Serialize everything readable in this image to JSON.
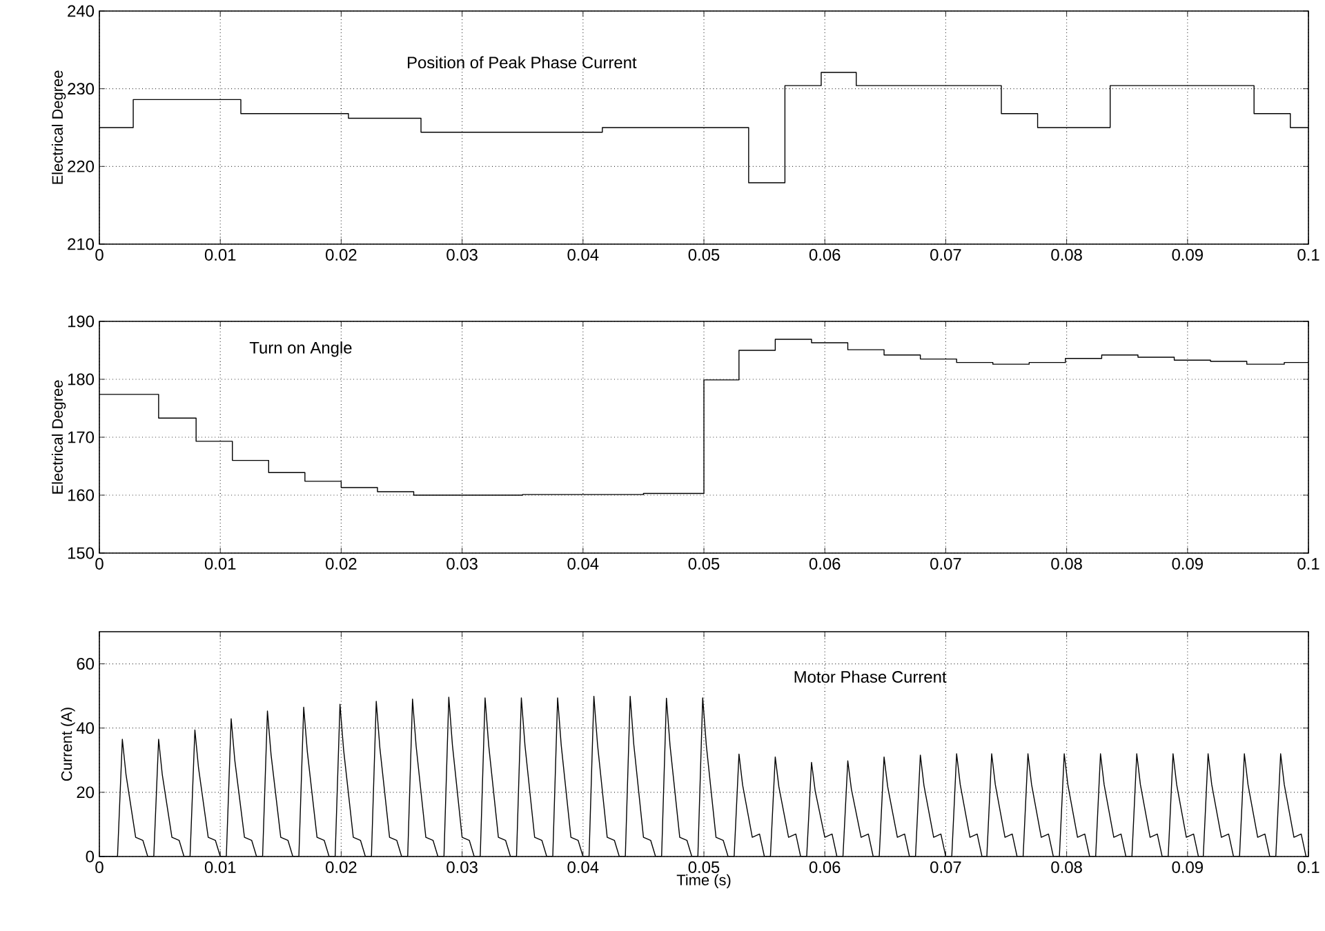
{
  "chart_data": [
    {
      "type": "step",
      "ylabel": "Electrical Degree",
      "annotations": [
        "Position of Peak Phase Current"
      ],
      "grid": true,
      "xlim": [
        0,
        0.1
      ],
      "ylim": [
        210,
        240
      ],
      "xticks": [
        0,
        0.01,
        0.02,
        0.03,
        0.04,
        0.05,
        0.06,
        0.07,
        0.08,
        0.09,
        0.1
      ],
      "yticks": [
        210,
        220,
        230,
        240
      ],
      "series": [
        {
          "color": "#000000",
          "x": [
            0,
            0.0028,
            0.0117,
            0.0206,
            0.0266,
            0.0416,
            0.0537,
            0.0567,
            0.0597,
            0.0626,
            0.0746,
            0.0776,
            0.0836,
            0.0955,
            0.0985,
            0.1
          ],
          "values": [
            225,
            228.6,
            226.8,
            226.2,
            224.4,
            225,
            217.9,
            230.4,
            232.1,
            230.4,
            226.8,
            225,
            230.4,
            226.8,
            225,
            225
          ]
        }
      ]
    },
    {
      "type": "step",
      "ylabel": "Electrical Degree",
      "annotations": [
        "Turn on Angle"
      ],
      "grid": true,
      "xlim": [
        0,
        0.1
      ],
      "ylim": [
        150,
        190
      ],
      "xticks": [
        0,
        0.01,
        0.02,
        0.03,
        0.04,
        0.05,
        0.06,
        0.07,
        0.08,
        0.09,
        0.1
      ],
      "yticks": [
        150,
        160,
        170,
        180,
        190
      ],
      "series": [
        {
          "color": "#000000",
          "x": [
            0,
            0.0049,
            0.008,
            0.011,
            0.014,
            0.017,
            0.02,
            0.023,
            0.026,
            0.035,
            0.045,
            0.05,
            0.0529,
            0.0559,
            0.0589,
            0.0619,
            0.0649,
            0.0679,
            0.0709,
            0.0739,
            0.0769,
            0.0799,
            0.0829,
            0.0859,
            0.0889,
            0.0919,
            0.0949,
            0.098,
            0.1
          ],
          "values": [
            177.4,
            173.3,
            169.3,
            166,
            163.9,
            162.4,
            161.3,
            160.6,
            160,
            160.1,
            160.3,
            179.9,
            185,
            186.9,
            186.3,
            185.1,
            184.2,
            183.5,
            182.9,
            182.6,
            182.9,
            183.6,
            184.2,
            183.8,
            183.3,
            183.1,
            182.6,
            182.9,
            182.9
          ]
        }
      ]
    },
    {
      "type": "line",
      "xlabel": "Time (s)",
      "ylabel": "Current (A)",
      "annotations": [
        "Motor Phase Current"
      ],
      "grid": true,
      "xlim": [
        0,
        0.1
      ],
      "ylim": [
        0,
        70
      ],
      "xticks": [
        0,
        0.01,
        0.02,
        0.03,
        0.04,
        0.05,
        0.06,
        0.07,
        0.08,
        0.09,
        0.1
      ],
      "yticks": [
        0,
        20,
        40,
        60
      ],
      "series": [
        {
          "color": "#000000",
          "x": [
            0,
            0.0015,
            0.0019,
            0.0022,
            0.003,
            0.0036,
            0.004,
            0.0045,
            0.0049,
            0.0052,
            0.006,
            0.0066,
            0.007,
            0.0075,
            0.0079,
            0.0082,
            0.009,
            0.0096,
            0.01,
            0.0105,
            0.0109,
            0.0112,
            0.012,
            0.0126,
            0.013,
            0.0135,
            0.0139,
            0.0142,
            0.015,
            0.0156,
            0.016,
            0.0165,
            0.0169,
            0.0172,
            0.018,
            0.0186,
            0.019,
            0.0195,
            0.0199,
            0.0202,
            0.021,
            0.0216,
            0.022,
            0.0225,
            0.0229,
            0.0232,
            0.024,
            0.0246,
            0.025,
            0.0255,
            0.0259,
            0.0262,
            0.027,
            0.0276,
            0.028,
            0.0285,
            0.0289,
            0.0292,
            0.03,
            0.0306,
            0.031,
            0.0315,
            0.0319,
            0.0322,
            0.033,
            0.0336,
            0.034,
            0.0345,
            0.0349,
            0.0352,
            0.036,
            0.0366,
            0.037,
            0.0375,
            0.0379,
            0.0382,
            0.039,
            0.0396,
            0.04,
            0.0405,
            0.0409,
            0.0412,
            0.042,
            0.0426,
            0.043,
            0.0435,
            0.0439,
            0.0442,
            0.045,
            0.0456,
            0.046,
            0.0465,
            0.0469,
            0.0472,
            0.048,
            0.0486,
            0.049,
            0.0495,
            0.0499,
            0.0502,
            0.051,
            0.0516,
            0.052,
            0.0525,
            0.0529,
            0.0532,
            0.054,
            0.0546,
            0.055,
            0.0555,
            0.0559,
            0.0562,
            0.057,
            0.0576,
            0.058,
            0.0585,
            0.0589,
            0.0592,
            0.06,
            0.0606,
            0.061,
            0.0615,
            0.0619,
            0.0622,
            0.063,
            0.0636,
            0.064,
            0.0645,
            0.0649,
            0.0652,
            0.066,
            0.0666,
            0.067,
            0.0675,
            0.0679,
            0.0682,
            0.069,
            0.0696,
            0.07,
            0.0705,
            0.0709,
            0.0712,
            0.072,
            0.0726,
            0.073,
            0.0734,
            0.0738,
            0.0741,
            0.0749,
            0.0755,
            0.0759,
            0.0764,
            0.0768,
            0.0771,
            0.0779,
            0.0785,
            0.0789,
            0.0794,
            0.0798,
            0.0801,
            0.0809,
            0.0815,
            0.0819,
            0.0824,
            0.0828,
            0.0831,
            0.0839,
            0.0845,
            0.0849,
            0.0854,
            0.0858,
            0.0861,
            0.0869,
            0.0875,
            0.0879,
            0.0884,
            0.0888,
            0.0891,
            0.0899,
            0.0905,
            0.0909,
            0.0913,
            0.0917,
            0.092,
            0.0928,
            0.0934,
            0.0938,
            0.0943,
            0.0947,
            0.095,
            0.0958,
            0.0964,
            0.0968,
            0.0973,
            0.0977,
            0.098,
            0.0988,
            0.0994,
            0.0998
          ],
          "values": [
            0,
            0,
            36.5,
            25.6,
            6,
            5,
            0,
            0,
            36.5,
            25.6,
            6,
            5,
            0,
            0,
            39.4,
            27.6,
            6,
            5,
            0,
            0,
            42.9,
            30,
            6,
            5,
            0,
            0,
            45.3,
            31.7,
            6,
            5,
            0,
            0,
            46.5,
            32.6,
            6,
            5,
            0,
            0,
            47.4,
            33.2,
            6,
            5,
            0,
            0,
            48.3,
            33.8,
            6,
            5,
            0,
            0,
            49,
            34.3,
            6,
            5,
            0,
            0,
            49.6,
            34.7,
            6,
            5,
            0,
            0,
            49.4,
            34.6,
            6,
            5,
            0,
            0,
            49.4,
            34.6,
            6,
            5,
            0,
            0,
            49.4,
            34.6,
            6,
            5,
            0,
            0,
            49.9,
            34.9,
            6,
            5,
            0,
            0,
            49.9,
            34.9,
            6,
            5,
            0,
            0,
            49.3,
            34.5,
            6,
            5,
            0,
            0,
            49.4,
            34.6,
            6,
            5,
            0,
            0,
            31.9,
            22.3,
            6,
            7,
            0,
            0,
            31,
            21.7,
            6,
            7,
            0,
            0,
            29.3,
            20.5,
            6,
            7,
            0,
            0,
            29.8,
            20.9,
            6,
            7,
            0,
            0,
            31,
            21.7,
            6,
            7,
            0,
            0,
            31.6,
            22.1,
            6,
            7,
            0,
            0,
            32,
            22.4,
            6,
            7,
            0,
            0,
            32,
            22.4,
            6,
            7,
            0,
            0,
            32,
            22.4,
            6,
            7,
            0,
            0,
            32,
            22.4,
            6,
            7,
            0,
            0,
            32,
            22.4,
            6,
            7,
            0,
            0,
            32,
            22.4,
            6,
            7,
            0,
            0,
            32,
            22.4,
            6,
            7,
            0,
            0,
            32,
            22.4,
            6,
            7,
            0,
            0,
            32,
            22.4,
            6,
            7,
            0,
            0,
            32,
            22.4,
            6,
            7,
            0
          ]
        }
      ]
    }
  ]
}
